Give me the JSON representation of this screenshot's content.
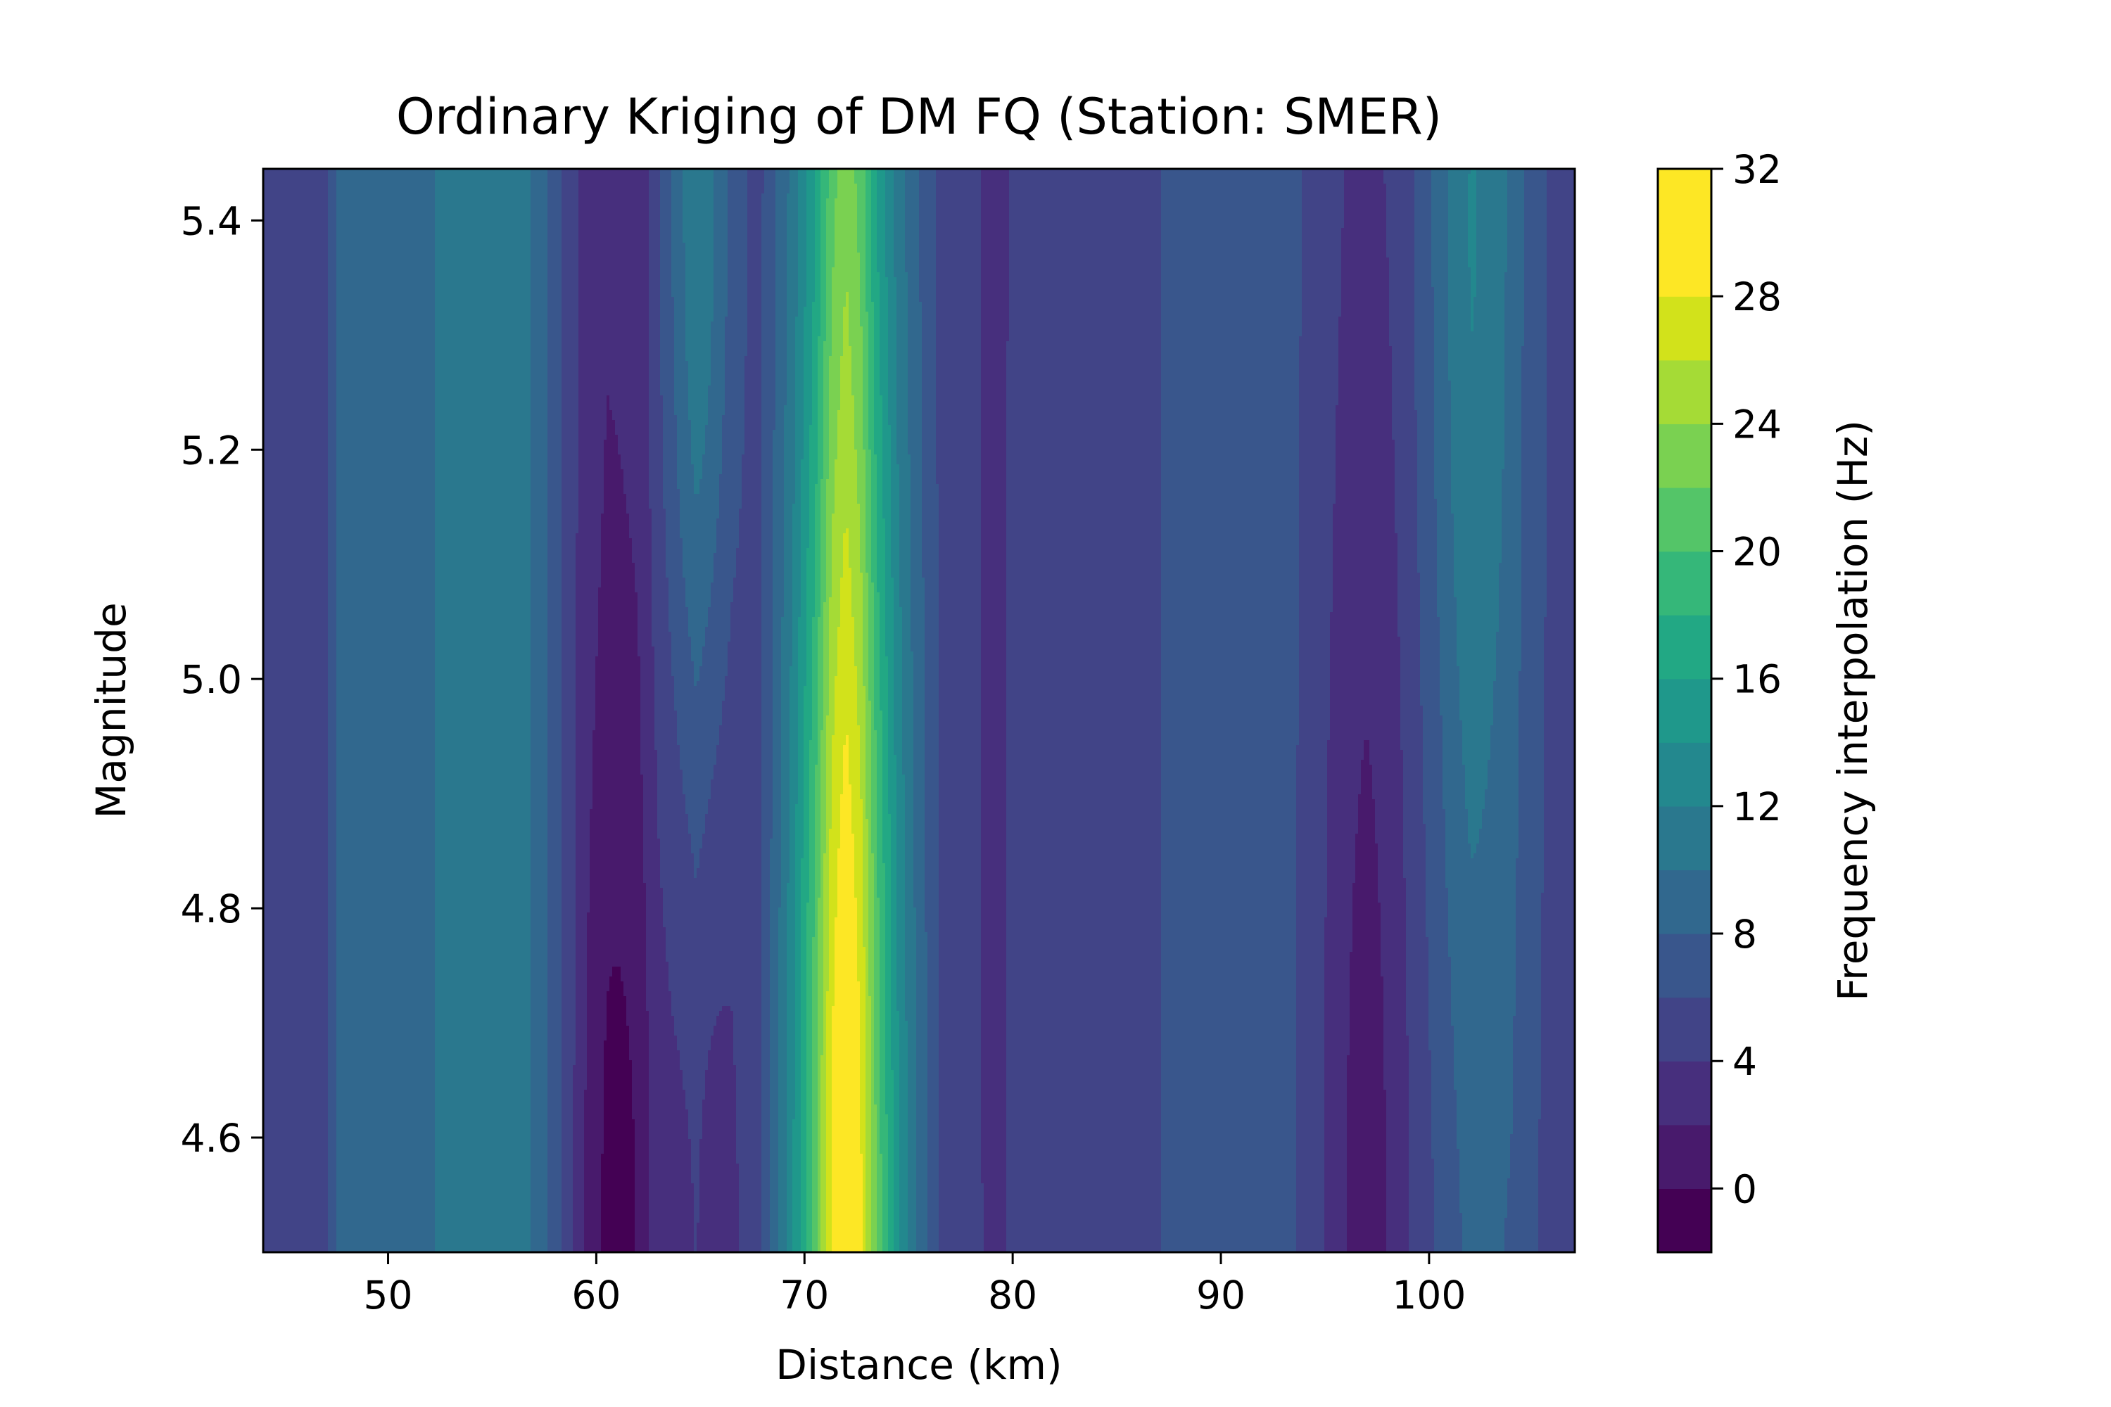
{
  "chart_data": {
    "type": "heatmap",
    "subtype": "filled-contour",
    "title": "Ordinary Kriging of DM FQ (Station: SMER)",
    "xlabel": "Distance (km)",
    "ylabel": "Magnitude",
    "xlim": [
      44,
      107
    ],
    "ylim": [
      4.5,
      5.445
    ],
    "xticks": [
      50,
      60,
      70,
      80,
      90,
      100
    ],
    "yticks": [
      4.6,
      4.8,
      5.0,
      5.2,
      5.4
    ],
    "colormap": "viridis",
    "colorbar": {
      "label": "Frequency interpolation (Hz)",
      "range": [
        -2,
        32
      ],
      "ticks": [
        0,
        4,
        8,
        12,
        16,
        20,
        24,
        28,
        32
      ],
      "levels": [
        -2,
        0,
        2,
        4,
        6,
        8,
        10,
        12,
        14,
        16,
        18,
        20,
        22,
        24,
        26,
        28,
        30,
        32
      ],
      "colors": [
        "#440154",
        "#481a6c",
        "#472f7d",
        "#414487",
        "#39568c",
        "#31688e",
        "#2a788e",
        "#23888e",
        "#1f988b",
        "#22a884",
        "#35b779",
        "#54c568",
        "#7ad151",
        "#a5db36",
        "#d2e21b",
        "#fde725",
        "#fde725"
      ]
    },
    "x_profile": {
      "distance_km": [
        44,
        47,
        47.5,
        50.5,
        53,
        56.5,
        57.5,
        58.5,
        59.5,
        60.5,
        62,
        63,
        64.8,
        66.5,
        67.8,
        69.5,
        70.5,
        71.3,
        72,
        72.7,
        73.5,
        74.5,
        75.5,
        76.5,
        77.5,
        78.5,
        79.2,
        80,
        87,
        87.5,
        92,
        94,
        96,
        97,
        98,
        100.5,
        102,
        104,
        105,
        107
      ],
      "base_frequency_hz": [
        5,
        5,
        8,
        8.6,
        10.6,
        10.6,
        8.6,
        5.6,
        3,
        2.2,
        2.5,
        5,
        8,
        5.6,
        5,
        10,
        14,
        19,
        21,
        19,
        14,
        10,
        7.6,
        5.4,
        5,
        4.2,
        3.2,
        5,
        5,
        7.6,
        7.6,
        6,
        4.5,
        4.1,
        4.5,
        6,
        7.6,
        7.4,
        6,
        5
      ]
    },
    "hotspots": [
      {
        "x_km": 72,
        "y_mag": 4.5,
        "peak_hz": 31,
        "amplitude_hz": 10,
        "sx_km": 1.9,
        "sy_mag": 0.55
      },
      {
        "x_km": 61,
        "y_mag": 4.5,
        "peak_hz": 0,
        "amplitude_hz": -3,
        "sx_km": 1.1,
        "sy_mag": 0.33
      },
      {
        "x_km": 97,
        "y_mag": 4.5,
        "peak_hz": 1,
        "amplitude_hz": -3,
        "sx_km": 1.6,
        "sy_mag": 0.55
      },
      {
        "x_km": 65,
        "y_mag": 4.5,
        "peak_hz": 4,
        "amplitude_hz": -4,
        "sx_km": 1.4,
        "sy_mag": 0.38
      },
      {
        "x_km": 102,
        "y_mag": 5.4,
        "peak_hz": 12,
        "amplitude_hz": 4.5,
        "sx_km": 1.6,
        "sy_mag": 0.5
      },
      {
        "x_km": 65,
        "y_mag": 5.4,
        "peak_hz": 13,
        "amplitude_hz": 4,
        "sx_km": 1.2,
        "sy_mag": 0.32
      },
      {
        "x_km": 79.2,
        "y_mag": 5.4,
        "peak_hz": 2,
        "amplitude_hz": -1,
        "sx_km": 0.45,
        "sy_mag": 0.7
      }
    ]
  }
}
